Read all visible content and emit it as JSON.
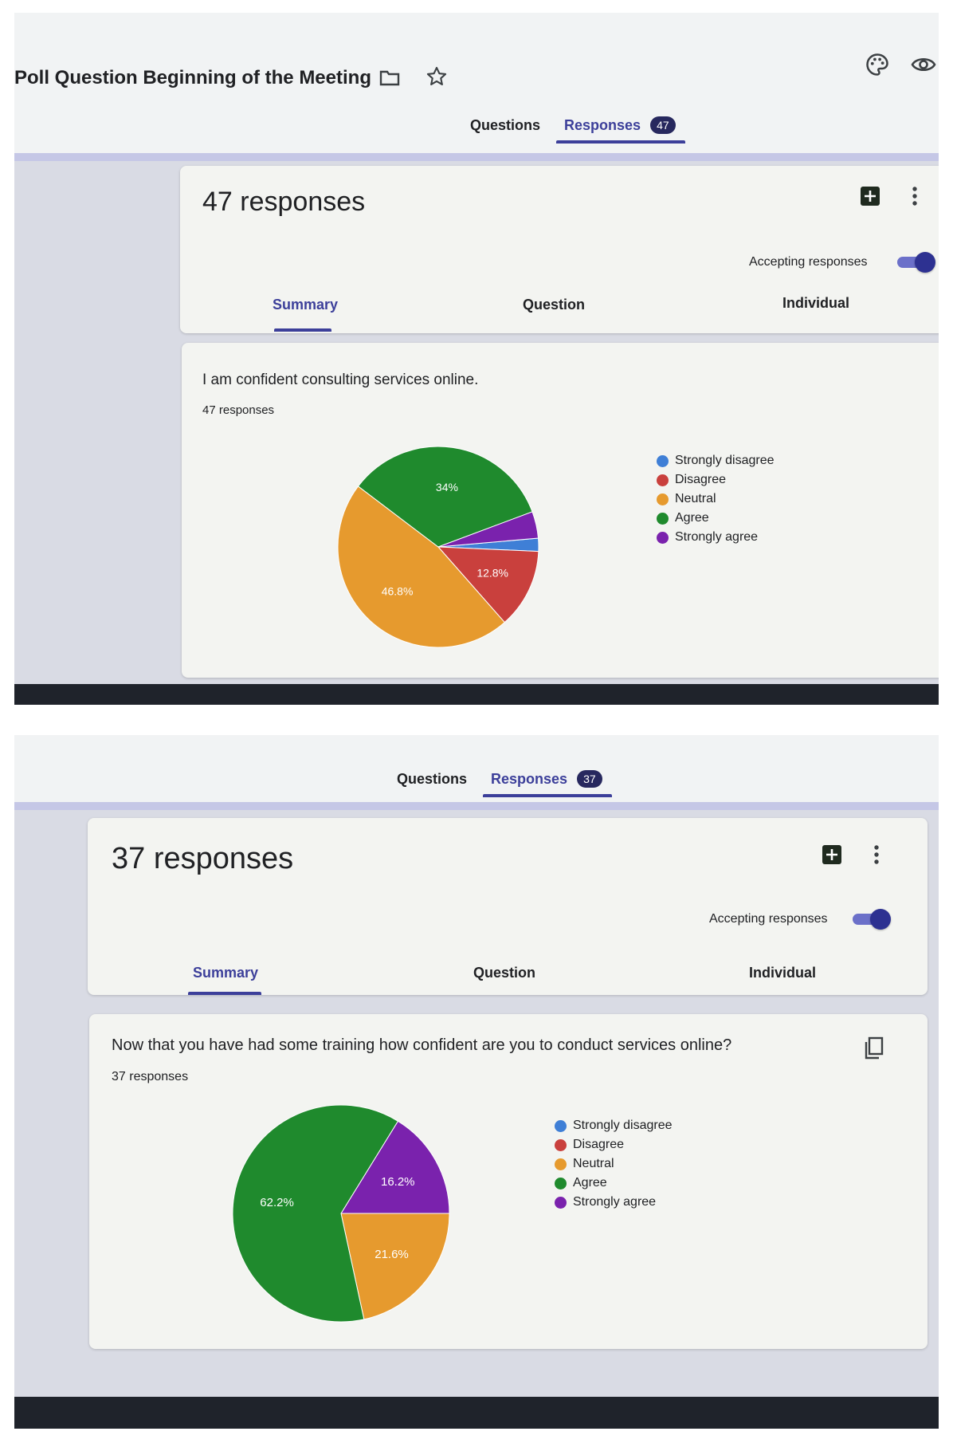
{
  "colors": {
    "strongly_disagree": "#3f7fd6",
    "disagree": "#c9403d",
    "neutral": "#e69a2e",
    "agree": "#1f8a2d",
    "strongly_agree": "#7a22ad",
    "accent": "#3c3f9a"
  },
  "legend_labels": [
    "Strongly disagree",
    "Disagree",
    "Neutral",
    "Agree",
    "Strongly agree"
  ],
  "panel1": {
    "form_title": "Poll Question Beginning of the Meeting",
    "icons": {
      "folder": "folder-icon",
      "star": "star-icon",
      "palette": "palette-icon",
      "preview": "eye-icon"
    },
    "nav": {
      "questions": "Questions",
      "responses": "Responses",
      "responses_badge": "47"
    },
    "header": {
      "response_count": "47 responses",
      "accepting": "Accepting responses",
      "tabs": {
        "summary": "Summary",
        "question": "Question",
        "individual": "Individual"
      }
    },
    "question": {
      "text": "I am confident consulting services online.",
      "count": "47 responses"
    }
  },
  "panel2": {
    "nav": {
      "questions": "Questions",
      "responses": "Responses",
      "responses_badge": "37"
    },
    "header": {
      "response_count": "37 responses",
      "accepting": "Accepting responses",
      "tabs": {
        "summary": "Summary",
        "question": "Question",
        "individual": "Individual"
      }
    },
    "question": {
      "text": "Now that you have had some training how confident are you to conduct services online?",
      "count": "37 responses"
    }
  },
  "chart_data": [
    {
      "type": "pie",
      "categories": [
        "Strongly disagree",
        "Disagree",
        "Neutral",
        "Agree",
        "Strongly agree"
      ],
      "values": [
        2.1,
        12.8,
        46.8,
        34.0,
        4.3
      ],
      "data_labels": {
        "Disagree": "12.8%",
        "Neutral": "46.8%",
        "Agree": "34%"
      },
      "legend": "right"
    },
    {
      "type": "pie",
      "categories": [
        "Strongly disagree",
        "Disagree",
        "Neutral",
        "Agree",
        "Strongly agree"
      ],
      "values": [
        0,
        0,
        21.6,
        62.2,
        16.2
      ],
      "data_labels": {
        "Neutral": "21.6%",
        "Agree": "62.2%",
        "Strongly agree": "16.2%"
      },
      "legend": "right"
    }
  ]
}
